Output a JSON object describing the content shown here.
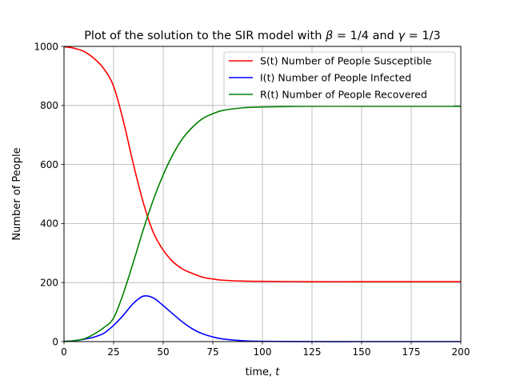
{
  "chart_data": {
    "type": "line",
    "title": "Plot of the solution to the SIR model with β = 1/4 and γ = 1/3",
    "title_parts": {
      "prefix": "Plot of the solution to the SIR model with ",
      "beta_symbol": "β",
      "beta_value": " = 1/4 and ",
      "gamma_symbol": "γ",
      "gamma_value": " = 1/3"
    },
    "xlabel": "time, t",
    "xlabel_parts": {
      "text": "time, ",
      "variable": "t"
    },
    "ylabel": "Number of People",
    "xlim": [
      0,
      200
    ],
    "ylim": [
      0,
      1000
    ],
    "xticks": [
      "0",
      "25",
      "50",
      "75",
      "100",
      "125",
      "150",
      "175",
      "200"
    ],
    "yticks": [
      "0",
      "200",
      "400",
      "600",
      "800",
      "1000"
    ],
    "grid": true,
    "legend_position": "top-right",
    "x": [
      0,
      5,
      10,
      15,
      20,
      25,
      30,
      35,
      40,
      45,
      50,
      55,
      60,
      65,
      70,
      75,
      80,
      90,
      100,
      125,
      150,
      175,
      200
    ],
    "series": [
      {
        "name": "S(t) Number of People Susceptible",
        "color": "#ff0000",
        "values": [
          999,
          994,
          983,
          960,
          925,
          865,
          745,
          600,
          470,
          370,
          310,
          270,
          245,
          230,
          218,
          212,
          208,
          205,
          204,
          203,
          203,
          203,
          203
        ]
      },
      {
        "name": "I(t) Number of People Infected",
        "color": "#0000ff",
        "values": [
          1,
          3,
          8,
          15,
          28,
          55,
          90,
          130,
          154,
          148,
          122,
          93,
          65,
          42,
          26,
          16,
          9,
          3,
          1,
          0,
          0,
          0,
          0
        ]
      },
      {
        "name": "R(t) Number of People Recovered",
        "color": "#008000",
        "values": [
          0,
          3,
          9,
          25,
          47,
          80,
          165,
          270,
          380,
          480,
          565,
          635,
          690,
          728,
          756,
          772,
          783,
          792,
          795,
          797,
          797,
          797,
          797
        ]
      }
    ]
  }
}
